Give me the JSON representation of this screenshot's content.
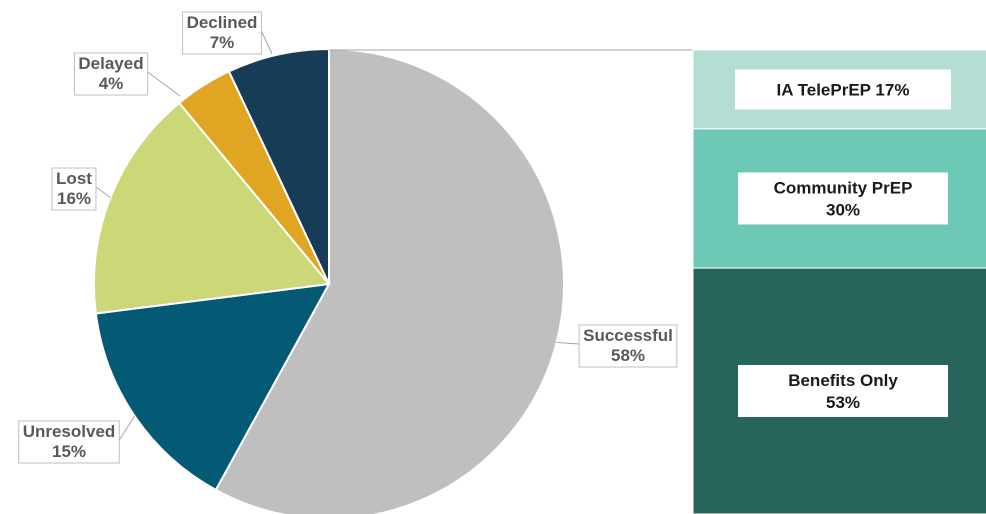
{
  "chart_data": [
    {
      "type": "pie",
      "slices": [
        {
          "label": "Successful",
          "value": 58,
          "value_label": "58%",
          "color": "#bfbfbf"
        },
        {
          "label": "Unresolved",
          "value": 15,
          "value_label": "15%",
          "color": "#045a74"
        },
        {
          "label": "Lost",
          "value": 16,
          "value_label": "16%",
          "color": "#ccd877"
        },
        {
          "label": "Delayed",
          "value": 4,
          "value_label": "4%",
          "color": "#e1a524"
        },
        {
          "label": "Declined",
          "value": 7,
          "value_label": "7%",
          "color": "#173c57"
        }
      ]
    },
    {
      "type": "bar",
      "orientation": "stacked-100",
      "segments": [
        {
          "label": "IA TelePrEP",
          "value": 17,
          "text": "IA TelePrEP 17%",
          "color": "#b4ddd4"
        },
        {
          "label": "Community PrEP",
          "value": 30,
          "text_line1": "Community PrEP",
          "text_line2": "30%",
          "color": "#6dc8b5"
        },
        {
          "label": "Benefits Only",
          "value": 53,
          "text_line1": "Benefits Only",
          "text_line2": "53%",
          "color": "#27645a"
        }
      ]
    }
  ]
}
